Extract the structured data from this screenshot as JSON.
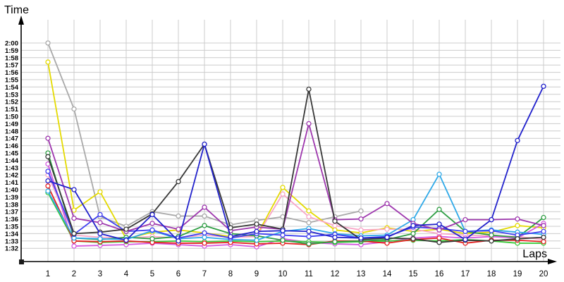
{
  "chart_data": {
    "type": "line",
    "title": "",
    "xlabel": "Laps",
    "ylabel": "Time",
    "legend": false,
    "grid": true,
    "marker": "circle",
    "x": [
      1,
      2,
      3,
      4,
      5,
      6,
      7,
      8,
      9,
      10,
      11,
      12,
      13,
      14,
      15,
      16,
      17,
      18,
      19,
      20
    ],
    "y_axis_note": "values are lap times, stored as seconds past 1:00 (e.g. 46.2 = 1:46.2); axis range 1:32 to 2:00, one gridline per second",
    "y_min": 32,
    "y_max": 60,
    "y_tick_labels": [
      "2:00",
      "1:59",
      "1:58",
      "1:57",
      "1:56",
      "1:55",
      "1:54",
      "1:53",
      "1:52",
      "1:51",
      "1:50",
      "1:49",
      "1:48",
      "1:47",
      "1:46",
      "1:45",
      "1:44",
      "1:43",
      "1:42",
      "1:41",
      "1:40",
      "1:39",
      "1:38",
      "1:37",
      "1:36",
      "1:35",
      "1:34",
      "1:33",
      "1:32"
    ],
    "series": [
      {
        "name": "gray",
        "color": "#a9a9a9",
        "values": [
          60,
          51,
          36.3,
          35,
          37,
          36.4,
          36.4,
          35.2,
          35.8,
          36.3,
          35.5,
          36.3,
          37.1,
          null,
          null,
          null,
          null,
          null,
          null,
          null
        ]
      },
      {
        "name": "yellow",
        "color": "#e4da00",
        "values": [
          57.4,
          37.2,
          39.7,
          33.3,
          34.2,
          34.5,
          34.1,
          33.6,
          33.7,
          40.3,
          37.1,
          34.5,
          34.1,
          34.8,
          34.3,
          34.6,
          34,
          34.2,
          35.1,
          34.8
        ]
      },
      {
        "name": "pink",
        "color": "#f9a7c8",
        "values": [
          42,
          33.8,
          33.5,
          33.4,
          33.6,
          33.4,
          33.8,
          33.5,
          33.6,
          39.4,
          36.3,
          35.1,
          34.5,
          34.6,
          34.6,
          34,
          33.8,
          33.7,
          33.6,
          33.2
        ]
      },
      {
        "name": "magenta",
        "color": "#d55ae0",
        "values": [
          43.5,
          32.3,
          32.4,
          32.5,
          32.7,
          32.5,
          32.3,
          32.5,
          32.2,
          33.3,
          32.8,
          32.6,
          32.5,
          32.9,
          33.4,
          33.6,
          33.4,
          33.6,
          33.4,
          35.4
        ]
      },
      {
        "name": "lime",
        "color": "#3dcb3d",
        "values": [
          39.6,
          33,
          32.8,
          32.9,
          32.9,
          33,
          32.9,
          33,
          32.9,
          33,
          32.9,
          32.8,
          32.9,
          33,
          33.1,
          33,
          33.2,
          33,
          32.7,
          32.7
        ]
      },
      {
        "name": "red",
        "color": "#e52222",
        "values": [
          40.5,
          33,
          32.9,
          33,
          32.8,
          32.7,
          32.7,
          32.8,
          32.6,
          32.7,
          32.5,
          33,
          33,
          32.7,
          33.2,
          33.4,
          32.7,
          33.1,
          33.1,
          32.9
        ]
      },
      {
        "name": "green",
        "color": "#2f9e44",
        "values": [
          45,
          33.4,
          33.2,
          33.5,
          33.3,
          33.6,
          35.1,
          34,
          33.7,
          33.1,
          32.6,
          32.9,
          33,
          33.2,
          34,
          37.3,
          34.3,
          33.8,
          33.5,
          36.2
        ]
      },
      {
        "name": "cyan",
        "color": "#2fa9e8",
        "values": [
          39.8,
          33.4,
          33.3,
          33.2,
          34.4,
          33.3,
          33.5,
          33.2,
          33.1,
          34.3,
          34.7,
          34,
          33.7,
          33.8,
          35.9,
          42.1,
          34.3,
          34.5,
          34.2,
          33.9
        ]
      },
      {
        "name": "blue",
        "color": "#4040f0",
        "values": [
          42.5,
          33.9,
          36.6,
          34.3,
          34.5,
          33.4,
          34.1,
          33.4,
          34,
          33.8,
          33.6,
          33.9,
          33.4,
          33.6,
          34.9,
          34.7,
          34.3,
          34.4,
          33.8,
          34.3
        ]
      },
      {
        "name": "purple",
        "color": "#9e37ae",
        "values": [
          47,
          36.1,
          35.5,
          34.3,
          35.4,
          34.6,
          37.6,
          34.4,
          34.9,
          34.6,
          49,
          35.9,
          36,
          38.1,
          35.4,
          34.5,
          35.9,
          35.9,
          36,
          35.1
        ]
      },
      {
        "name": "black",
        "color": "#383838",
        "values": [
          44.5,
          34,
          34.2,
          34.6,
          36.7,
          41.1,
          46.2,
          34.8,
          35.3,
          34.6,
          53.7,
          35.7,
          33.2,
          33.4,
          33.3,
          32.8,
          33.1,
          33,
          33.3,
          33.5
        ]
      },
      {
        "name": "navy",
        "color": "#2222cc",
        "values": [
          41.2,
          40,
          34,
          33.1,
          36.6,
          33,
          46.2,
          33.6,
          34.3,
          34.4,
          34.3,
          33.5,
          33.4,
          33.5,
          35.1,
          35.3,
          33.2,
          35.9,
          46.7,
          54.1
        ]
      }
    ]
  }
}
